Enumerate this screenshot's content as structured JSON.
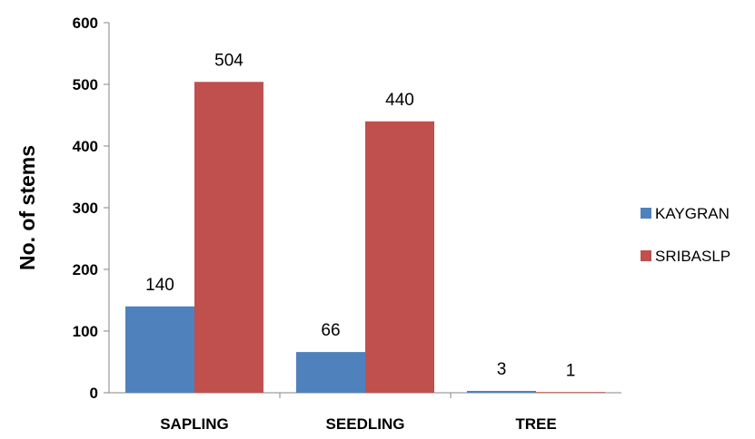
{
  "chart_data": {
    "type": "bar",
    "title": "",
    "xlabel": "",
    "ylabel": "No. of stems",
    "categories": [
      "SAPLING",
      "SEEDLING",
      "TREE"
    ],
    "series": [
      {
        "name": "KAYGRAN",
        "values": [
          140,
          66,
          3
        ],
        "color": "#4F81BD"
      },
      {
        "name": "SRIBASLP",
        "values": [
          504,
          440,
          1
        ],
        "color": "#C0504D"
      }
    ],
    "ylim": [
      0,
      600
    ],
    "yticks": [
      0,
      100,
      200,
      300,
      400,
      500,
      600
    ],
    "grid": false,
    "legend_position": "right"
  }
}
